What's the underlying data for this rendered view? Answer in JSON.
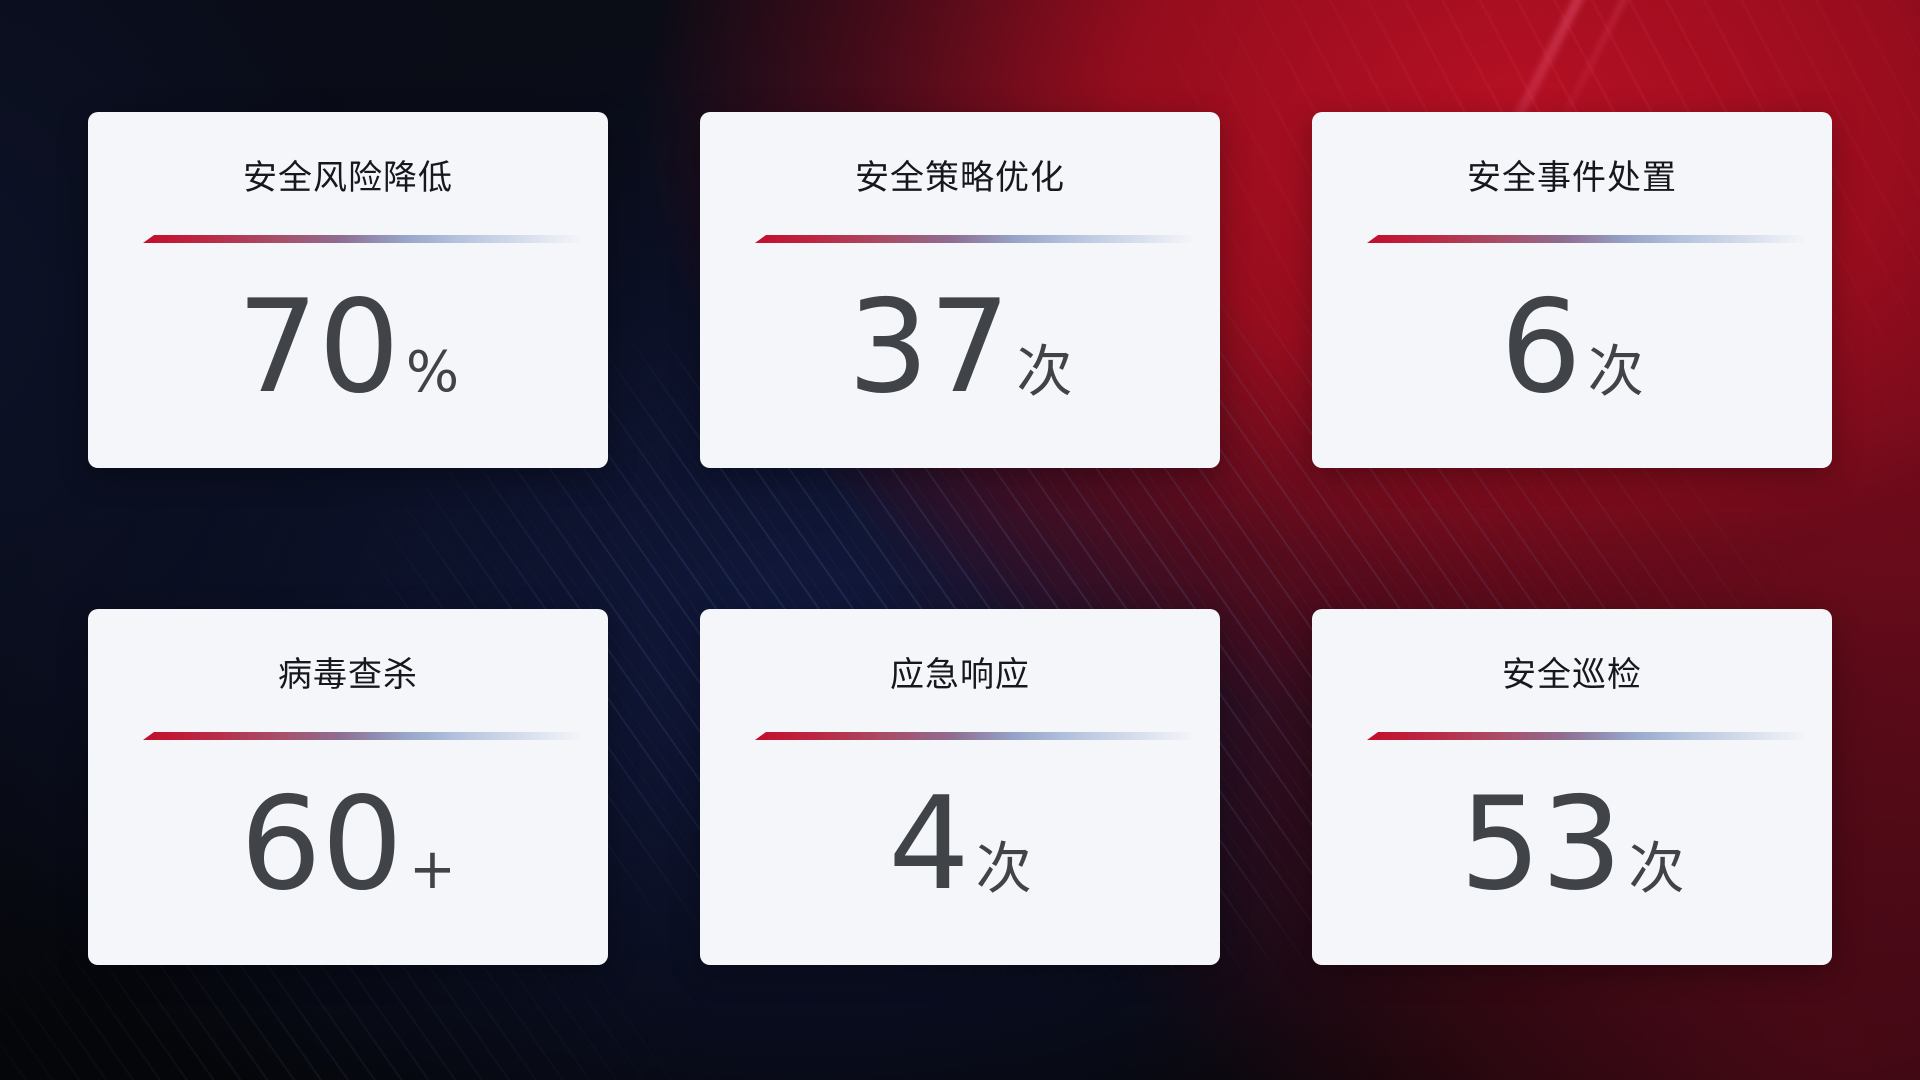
{
  "theme": {
    "accent_red": "#c40d2d",
    "divider_blue": "#b3c2dd",
    "card_background": "#f5f6fa",
    "title_color": "#15181e",
    "value_color": "#404449",
    "background_navy": "#111a3e",
    "background_red": "#a00d20"
  },
  "cards": [
    {
      "title": "安全风险降低",
      "value": "70",
      "suffix": "%"
    },
    {
      "title": "安全策略优化",
      "value": "37",
      "suffix": "次"
    },
    {
      "title": "安全事件处置",
      "value": "6",
      "suffix": "次"
    },
    {
      "title": "病毒查杀",
      "value": "60",
      "suffix": "+"
    },
    {
      "title": "应急响应",
      "value": "4",
      "suffix": "次"
    },
    {
      "title": "安全巡检",
      "value": "53",
      "suffix": "次"
    }
  ]
}
